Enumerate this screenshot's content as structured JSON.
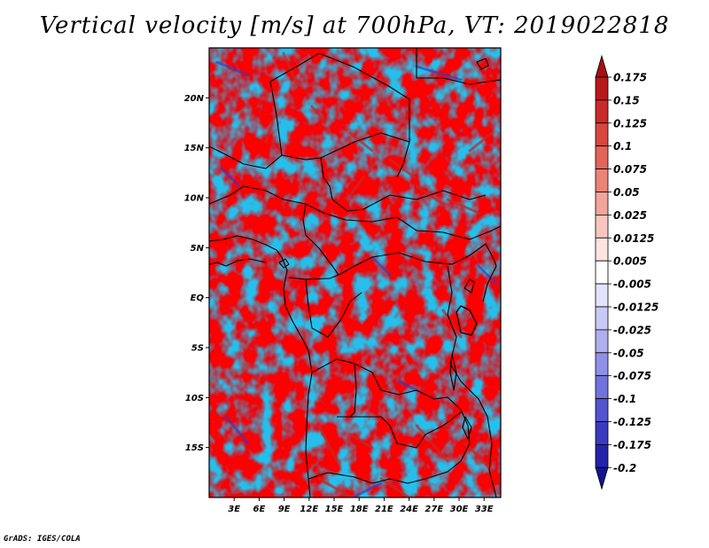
{
  "title": "Vertical velocity [m/s] at 700hPa, VT: 2019022818",
  "credit": "GrADS: IGES/COLA",
  "map": {
    "lon_range": [
      0,
      35
    ],
    "lat_range": [
      -20,
      25
    ],
    "y_ticks": [
      {
        "lat": 20,
        "label": "20N"
      },
      {
        "lat": 15,
        "label": "15N"
      },
      {
        "lat": 10,
        "label": "10N"
      },
      {
        "lat": 5,
        "label": "5N"
      },
      {
        "lat": 0,
        "label": "EQ"
      },
      {
        "lat": -5,
        "label": "5S"
      },
      {
        "lat": -10,
        "label": "10S"
      },
      {
        "lat": -15,
        "label": "15S"
      }
    ],
    "x_ticks": [
      {
        "lon": 3,
        "label": "3E"
      },
      {
        "lon": 6,
        "label": "6E"
      },
      {
        "lon": 9,
        "label": "9E"
      },
      {
        "lon": 12,
        "label": "12E"
      },
      {
        "lon": 15,
        "label": "15E"
      },
      {
        "lon": 18,
        "label": "18E"
      },
      {
        "lon": 21,
        "label": "21E"
      },
      {
        "lon": 24,
        "label": "24E"
      },
      {
        "lon": 27,
        "label": "27E"
      },
      {
        "lon": 30,
        "label": "30E"
      },
      {
        "lon": 33,
        "label": "33E"
      }
    ]
  },
  "colorbar": {
    "levels": [
      "0.175",
      "0.15",
      "0.125",
      "0.1",
      "0.075",
      "0.05",
      "0.025",
      "0.0125",
      "0.005",
      "-0.005",
      "-0.0125",
      "-0.025",
      "-0.05",
      "-0.075",
      "-0.1",
      "-0.125",
      "-0.175",
      "-0.2"
    ],
    "colors": [
      "#a50f15",
      "#b8181c",
      "#cb2a2a",
      "#d9463f",
      "#e2655b",
      "#ea8478",
      "#f2a59b",
      "#f8c6bf",
      "#fde4e0",
      "#ffffff",
      "#e3e3fb",
      "#c9c9f6",
      "#aeaef0",
      "#9090e7",
      "#7272dd",
      "#5454cf",
      "#3a3abf",
      "#2323a8",
      "#141490"
    ]
  }
}
